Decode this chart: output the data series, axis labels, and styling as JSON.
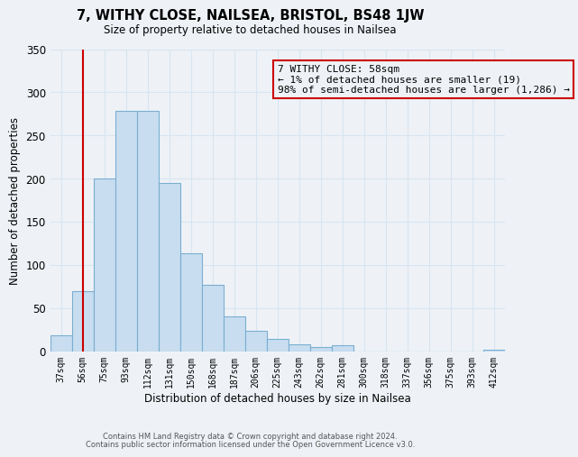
{
  "title": "7, WITHY CLOSE, NAILSEA, BRISTOL, BS48 1JW",
  "subtitle": "Size of property relative to detached houses in Nailsea",
  "xlabel": "Distribution of detached houses by size in Nailsea",
  "ylabel": "Number of detached properties",
  "bar_labels": [
    "37sqm",
    "56sqm",
    "75sqm",
    "93sqm",
    "112sqm",
    "131sqm",
    "150sqm",
    "168sqm",
    "187sqm",
    "206sqm",
    "225sqm",
    "243sqm",
    "262sqm",
    "281sqm",
    "300sqm",
    "318sqm",
    "337sqm",
    "356sqm",
    "375sqm",
    "393sqm",
    "412sqm"
  ],
  "bar_values": [
    18,
    70,
    200,
    278,
    278,
    195,
    113,
    77,
    40,
    24,
    14,
    8,
    5,
    7,
    0,
    0,
    0,
    0,
    0,
    0,
    2
  ],
  "bar_color": "#c8ddf0",
  "bar_edge_color": "#7aaed0",
  "vline_x": 1,
  "vline_color": "#cc0000",
  "annotation_line1": "7 WITHY CLOSE: 58sqm",
  "annotation_line2": "← 1% of detached houses are smaller (19)",
  "annotation_line3": "98% of semi-detached houses are larger (1,286) →",
  "annotation_box_edgecolor": "#cc0000",
  "ylim": [
    0,
    350
  ],
  "yticks": [
    0,
    50,
    100,
    150,
    200,
    250,
    300,
    350
  ],
  "footer_line1": "Contains HM Land Registry data © Crown copyright and database right 2024.",
  "footer_line2": "Contains public sector information licensed under the Open Government Licence v3.0.",
  "bg_color": "#eef2f7",
  "grid_color": "#d8e4f0"
}
